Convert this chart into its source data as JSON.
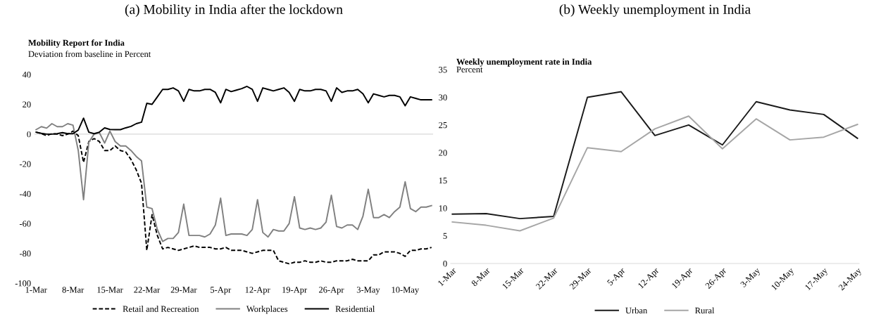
{
  "chart_data": [
    {
      "type": "line",
      "title": "(a) Mobility in India after the lockdown",
      "subtitle": "Mobility Report for India",
      "ylabel": "Deviation from baseline in Percent",
      "categories": [
        "1-Mar",
        null,
        null,
        null,
        null,
        null,
        null,
        "8-Mar",
        null,
        null,
        null,
        null,
        null,
        null,
        "15-Mar",
        null,
        null,
        null,
        null,
        null,
        null,
        "22-Mar",
        null,
        null,
        null,
        null,
        null,
        null,
        "29-Mar",
        null,
        null,
        null,
        null,
        null,
        null,
        "5-Apr",
        null,
        null,
        null,
        null,
        null,
        null,
        "12-Apr",
        null,
        null,
        null,
        null,
        null,
        null,
        "19-Apr",
        null,
        null,
        null,
        null,
        null,
        null,
        "26-Apr",
        null,
        null,
        null,
        null,
        null,
        null,
        "3-May",
        null,
        null,
        null,
        null,
        null,
        null,
        "10-May",
        null,
        null,
        null,
        null,
        null
      ],
      "series": [
        {
          "name": "Retail and Recreation",
          "color": "#000000",
          "line_style": "dashed",
          "values": [
            1.3,
            0.3,
            -1,
            0.3,
            0,
            -1,
            0,
            2,
            -1,
            -19,
            -5,
            -3,
            -5,
            -11,
            -11,
            -8,
            -11,
            -12,
            -17,
            -24,
            -33,
            -78,
            -54,
            -68,
            -77,
            -76,
            -77,
            -78,
            -77,
            -76,
            -75,
            -76,
            -76,
            -76,
            -77,
            -77,
            -76,
            -78,
            -78,
            -78,
            -79,
            -80,
            -79,
            -78,
            -78,
            -78,
            -85,
            -86,
            -87,
            -86,
            -86,
            -85,
            -86,
            -86,
            -85,
            -86,
            -86,
            -85,
            -85,
            -85,
            -84,
            -85,
            -85,
            -85,
            -81,
            -81,
            -79,
            -79,
            -79,
            -80,
            -82,
            -78,
            -78,
            -77,
            -77,
            -76
          ]
        },
        {
          "name": "Workplaces",
          "color": "#808080",
          "line_style": "solid",
          "values": [
            3,
            5,
            4,
            7,
            5,
            5,
            7,
            6,
            -11,
            -44,
            -5.5,
            0,
            1,
            -6,
            2,
            -5,
            -8,
            -8,
            -11,
            -15,
            -18,
            -49,
            -50,
            -64,
            -72,
            -70,
            -70,
            -66,
            -47,
            -68,
            -68,
            -68,
            -69,
            -67,
            -61,
            -43,
            -68,
            -67,
            -67,
            -67,
            -68,
            -64,
            -44,
            -66,
            -69,
            -64,
            -65,
            -65,
            -60,
            -42,
            -63,
            -64,
            -63,
            -64,
            -63,
            -59,
            -41,
            -62,
            -63,
            -61,
            -61,
            -64,
            -55,
            -37,
            -56,
            -56,
            -54,
            -56,
            -52,
            -49,
            -32,
            -50,
            -52,
            -49,
            -49,
            -48
          ]
        },
        {
          "name": "Residential",
          "color": "#000000",
          "line_style": "solid",
          "values": [
            1.3,
            0.5,
            0,
            0,
            0.3,
            1,
            0.3,
            0.3,
            2.7,
            10.7,
            1.3,
            0.3,
            1.3,
            4.2,
            3.1,
            3,
            3,
            4.2,
            5.2,
            7,
            8,
            20.7,
            20,
            25,
            30,
            30,
            31,
            29,
            22,
            30,
            29,
            29,
            30,
            30,
            28,
            21,
            30,
            28.5,
            29.5,
            30.5,
            32,
            30,
            22,
            31,
            30,
            29,
            30,
            31,
            28,
            22,
            30,
            29,
            29,
            30,
            30,
            29,
            22,
            31,
            28,
            29,
            29,
            30,
            27,
            21,
            27,
            26,
            25,
            26,
            26,
            25,
            19,
            25,
            24,
            23,
            23,
            23
          ]
        }
      ],
      "ylim": [
        -100,
        40
      ],
      "yticks": [
        -100,
        -80,
        -60,
        -40,
        -20,
        0,
        20,
        40
      ],
      "ref_lines": [
        {
          "axis": "y",
          "value": 0,
          "color": "#d9d9d9"
        }
      ],
      "legend": "bottom",
      "grid": false
    },
    {
      "type": "line",
      "title": "(b) Weekly unemployment in India",
      "subtitle": "Weekly unemployment rate in India",
      "ylabel": "Percent",
      "categories": [
        "1-Mar",
        "8-Mar",
        "15-Mar",
        "22-Mar",
        "29-Mar",
        "5-Apr",
        "12-Apr",
        "19-Apr",
        "26-Apr",
        "3-May",
        "10-May",
        "17-May",
        "24-May"
      ],
      "series": [
        {
          "name": "Urban",
          "color": "#1a1a1a",
          "values": [
            8.9,
            9.0,
            8.1,
            8.5,
            30.0,
            31.0,
            23.1,
            25.0,
            21.4,
            29.2,
            27.7,
            26.9,
            22.6
          ]
        },
        {
          "name": "Rural",
          "color": "#a6a6a6",
          "values": [
            7.5,
            6.9,
            5.9,
            8.2,
            20.9,
            20.2,
            24.3,
            26.6,
            20.7,
            26.1,
            22.3,
            22.8,
            25.1
          ]
        }
      ],
      "ylim": [
        0,
        35
      ],
      "yticks": [
        0,
        5,
        10,
        15,
        20,
        25,
        30,
        35
      ],
      "legend": "bottom",
      "grid": false
    }
  ]
}
